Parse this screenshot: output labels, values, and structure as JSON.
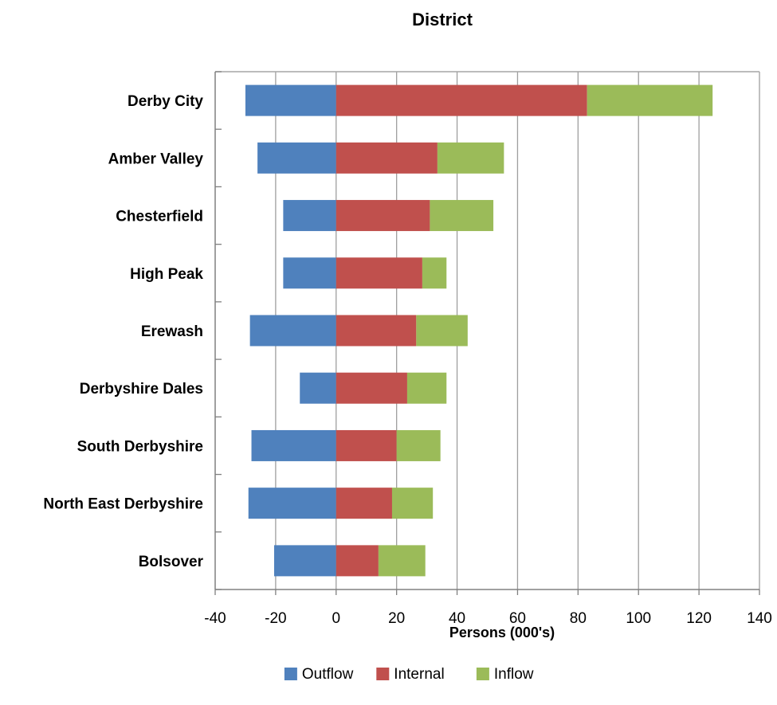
{
  "chart_data": {
    "type": "bar",
    "orientation": "horizontal",
    "stacked": true,
    "title": "District",
    "xlabel": "Persons (000's)",
    "ylabel": "",
    "xlim": [
      -40,
      140
    ],
    "xticks": [
      -40,
      -20,
      0,
      20,
      40,
      60,
      80,
      100,
      120,
      140
    ],
    "grid": "vertical",
    "legend_position": "bottom",
    "categories": [
      "Derby City",
      "Amber Valley",
      "Chesterfield",
      "High Peak",
      "Erewash",
      "Derbyshire Dales",
      "South Derbyshire",
      "North East Derbyshire",
      "Bolsover"
    ],
    "series": [
      {
        "name": "Outflow",
        "color": "#4F81BD",
        "values": [
          -30,
          -26,
          -17.5,
          -17.5,
          -28.5,
          -12,
          -28,
          -29,
          -20.5
        ]
      },
      {
        "name": "Internal",
        "color": "#C0504D",
        "values": [
          83,
          33.5,
          31,
          28.5,
          26.5,
          23.5,
          20,
          18.5,
          14
        ]
      },
      {
        "name": "Inflow",
        "color": "#9BBB59",
        "values": [
          41.5,
          22,
          21,
          8,
          17,
          13,
          14.5,
          13.5,
          15.5
        ]
      }
    ]
  }
}
